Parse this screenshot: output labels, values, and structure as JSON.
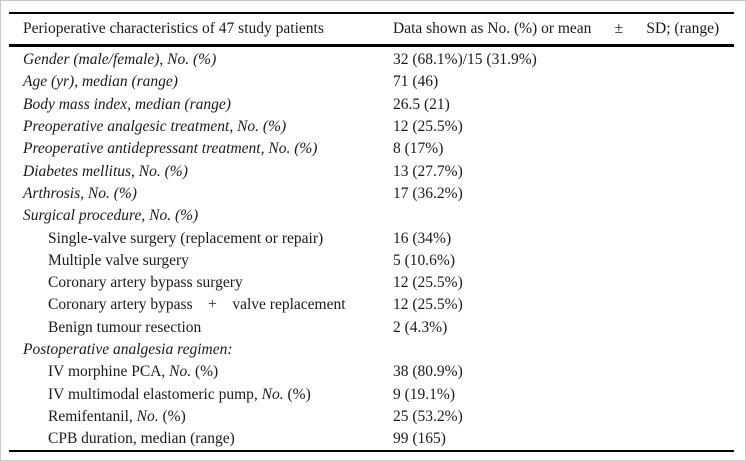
{
  "colors": {
    "background": "#ffffff",
    "frame_border": "#c8c8c8",
    "rule": "#000000",
    "text": "#1a1a1a"
  },
  "table": {
    "header": {
      "characteristics_label": "Perioperative characteristics of 47 study patients",
      "data_format_label": "Data shown as No. (%) or mean      ±      SD; (range)"
    },
    "rows": [
      {
        "indent": 0,
        "parts": [
          {
            "text": "Gender (male/female), No. (%)",
            "italic": true
          }
        ],
        "value": "32 (68.1%)/15 (31.9%)"
      },
      {
        "indent": 0,
        "parts": [
          {
            "text": "Age (yr), median (range)",
            "italic": true
          }
        ],
        "value": "71 (46)"
      },
      {
        "indent": 0,
        "parts": [
          {
            "text": "Body mass index, median (range)",
            "italic": true
          }
        ],
        "value": "26.5 (21)"
      },
      {
        "indent": 0,
        "parts": [
          {
            "text": "Preoperative analgesic treatment, No. (%)",
            "italic": true
          }
        ],
        "value": "12 (25.5%)"
      },
      {
        "indent": 0,
        "parts": [
          {
            "text": "Preoperative antidepressant treatment, No. (%)",
            "italic": true
          }
        ],
        "value": "8 (17%)"
      },
      {
        "indent": 0,
        "parts": [
          {
            "text": "Diabetes mellitus, No. (%)",
            "italic": true
          }
        ],
        "value": "13 (27.7%)"
      },
      {
        "indent": 0,
        "parts": [
          {
            "text": "Arthrosis, No. (%)",
            "italic": true
          }
        ],
        "value": "17 (36.2%)"
      },
      {
        "indent": 0,
        "parts": [
          {
            "text": "Surgical procedure, No. (%)",
            "italic": true
          }
        ],
        "value": ""
      },
      {
        "indent": 1,
        "parts": [
          {
            "text": "Single-valve surgery (replacement or repair)",
            "italic": false
          }
        ],
        "value": "16 (34%)"
      },
      {
        "indent": 1,
        "parts": [
          {
            "text": "Multiple valve surgery",
            "italic": false
          }
        ],
        "value": "5 (10.6%)"
      },
      {
        "indent": 1,
        "parts": [
          {
            "text": "Coronary artery bypass surgery",
            "italic": false
          }
        ],
        "value": "12 (25.5%)"
      },
      {
        "indent": 1,
        "parts": [
          {
            "text": "Coronary artery bypass    +    valve replacement",
            "italic": false
          }
        ],
        "value": "12 (25.5%)"
      },
      {
        "indent": 1,
        "parts": [
          {
            "text": "Benign tumour resection",
            "italic": false
          }
        ],
        "value": "2 (4.3%)"
      },
      {
        "indent": 0,
        "parts": [
          {
            "text": "Postoperative analgesia regimen:",
            "italic": true
          }
        ],
        "value": ""
      },
      {
        "indent": 1,
        "parts": [
          {
            "text": "IV morphine PCA, ",
            "italic": false
          },
          {
            "text": "No.",
            "italic": true
          },
          {
            "text": " (%)",
            "italic": false
          }
        ],
        "value": "38 (80.9%)"
      },
      {
        "indent": 1,
        "parts": [
          {
            "text": "IV multimodal elastomeric pump, ",
            "italic": false
          },
          {
            "text": "No.",
            "italic": true
          },
          {
            "text": " (%)",
            "italic": false
          }
        ],
        "value": "9 (19.1%)"
      },
      {
        "indent": 1,
        "parts": [
          {
            "text": "Remifentanil, ",
            "italic": false
          },
          {
            "text": "No.",
            "italic": true
          },
          {
            "text": " (%)",
            "italic": false
          }
        ],
        "value": "25 (53.2%)"
      },
      {
        "indent": 1,
        "parts": [
          {
            "text": "CPB duration, median (range)",
            "italic": false
          }
        ],
        "value": "99 (165)"
      }
    ]
  }
}
